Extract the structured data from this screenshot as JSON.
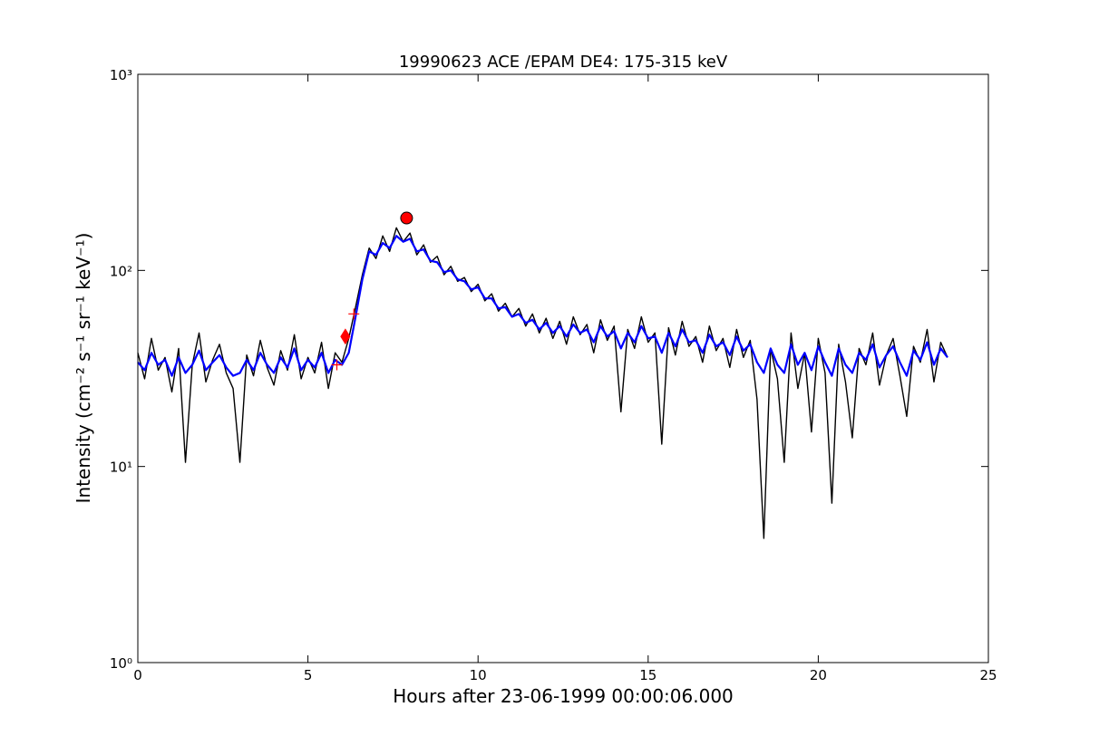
{
  "chart_data": {
    "type": "line",
    "title": "19990623 ACE /EPAM DE4: 175-315 keV",
    "x_label": "Hours after 23-06-1999 00:00:06.000",
    "y_label": "Intensity (cm⁻² s⁻¹ sr⁻¹ keV⁻¹)",
    "y_scale": "log",
    "grid": false,
    "xlim": [
      0,
      25
    ],
    "xticks": [
      0,
      5,
      10,
      15,
      20,
      25
    ],
    "ylim": [
      1,
      1000
    ],
    "yticks": [
      {
        "value": 1,
        "label": "10⁰"
      },
      {
        "value": 10,
        "label": "10¹"
      },
      {
        "value": 100,
        "label": "10²"
      },
      {
        "value": 1000,
        "label": "10³"
      }
    ],
    "x": [
      0,
      0.2,
      0.4,
      0.6,
      0.8,
      1,
      1.2,
      1.4,
      1.6,
      1.8,
      2,
      2.2,
      2.4,
      2.6,
      2.8,
      3,
      3.2,
      3.4,
      3.6,
      3.8,
      4,
      4.2,
      4.4,
      4.6,
      4.8,
      5,
      5.2,
      5.4,
      5.6,
      5.8,
      6,
      6.2,
      6.4,
      6.6,
      6.8,
      7,
      7.2,
      7.4,
      7.6,
      7.8,
      8,
      8.2,
      8.4,
      8.6,
      8.8,
      9,
      9.2,
      9.4,
      9.6,
      9.8,
      10,
      10.2,
      10.4,
      10.6,
      10.8,
      11,
      11.2,
      11.4,
      11.6,
      11.8,
      12,
      12.2,
      12.4,
      12.6,
      12.8,
      13,
      13.2,
      13.4,
      13.6,
      13.8,
      14,
      14.2,
      14.4,
      14.6,
      14.8,
      15,
      15.2,
      15.4,
      15.6,
      15.8,
      16,
      16.2,
      16.4,
      16.6,
      16.8,
      17,
      17.2,
      17.4,
      17.6,
      17.8,
      18,
      18.2,
      18.4,
      18.6,
      18.8,
      19,
      19.2,
      19.4,
      19.6,
      19.8,
      20,
      20.2,
      20.4,
      20.6,
      20.8,
      21,
      21.2,
      21.4,
      21.6,
      21.8,
      22,
      22.2,
      22.4,
      22.6,
      22.8,
      23,
      23.2,
      23.4,
      23.6,
      23.8
    ],
    "series": [
      {
        "color": "#000000",
        "values": [
          38,
          28,
          45,
          31,
          36,
          24,
          40,
          10.5,
          33,
          48,
          27,
          35,
          42,
          30,
          25,
          10.5,
          37,
          29,
          44,
          32,
          26,
          39,
          31,
          47,
          28,
          36,
          30,
          43,
          25,
          38,
          34,
          45,
          65,
          95,
          130,
          115,
          150,
          125,
          165,
          140,
          155,
          120,
          135,
          110,
          118,
          95,
          105,
          88,
          92,
          78,
          85,
          70,
          76,
          62,
          68,
          58,
          64,
          52,
          60,
          48,
          57,
          45,
          55,
          42,
          58,
          47,
          53,
          38,
          56,
          44,
          52,
          19,
          50,
          40,
          58,
          43,
          48,
          13,
          51,
          37,
          55,
          41,
          46,
          34,
          52,
          39,
          45,
          32,
          50,
          36,
          44,
          22,
          4.3,
          40,
          28,
          10.5,
          48,
          25,
          38,
          15,
          45,
          30,
          6.5,
          42,
          27,
          14,
          40,
          33,
          48,
          26,
          37,
          45,
          29,
          18,
          41,
          34,
          50,
          27,
          43,
          36
        ]
      },
      {
        "color": "#0000ff",
        "values": [
          34,
          31,
          38,
          33,
          35,
          29,
          36,
          30,
          33,
          39,
          31,
          34,
          37,
          32,
          29,
          30,
          35,
          31,
          38,
          33,
          30,
          36,
          32,
          40,
          31,
          35,
          32,
          38,
          30,
          35,
          33,
          38,
          58,
          90,
          125,
          120,
          138,
          130,
          150,
          140,
          145,
          125,
          128,
          112,
          110,
          98,
          100,
          90,
          88,
          80,
          82,
          72,
          72,
          64,
          65,
          58,
          60,
          54,
          56,
          50,
          54,
          48,
          52,
          46,
          53,
          48,
          50,
          43,
          52,
          46,
          49,
          40,
          48,
          43,
          52,
          45,
          46,
          38,
          48,
          41,
          50,
          43,
          44,
          38,
          47,
          41,
          43,
          37,
          46,
          39,
          42,
          34,
          30,
          40,
          33,
          30,
          42,
          33,
          38,
          31,
          41,
          34,
          29,
          40,
          33,
          30,
          38,
          35,
          42,
          32,
          37,
          41,
          34,
          29,
          39,
          35,
          43,
          33,
          40,
          36
        ]
      }
    ],
    "markers": [
      {
        "shape": "circle",
        "color": "#ff0000",
        "x": 7.9,
        "y": 185
      },
      {
        "shape": "diamond",
        "color": "#ff0000",
        "x": 6.1,
        "y": 46
      },
      {
        "shape": "plus",
        "color": "#ff0000",
        "x": 5.85,
        "y": 33
      },
      {
        "shape": "plus",
        "color": "#ff0000",
        "x": 6.35,
        "y": 60
      }
    ]
  }
}
